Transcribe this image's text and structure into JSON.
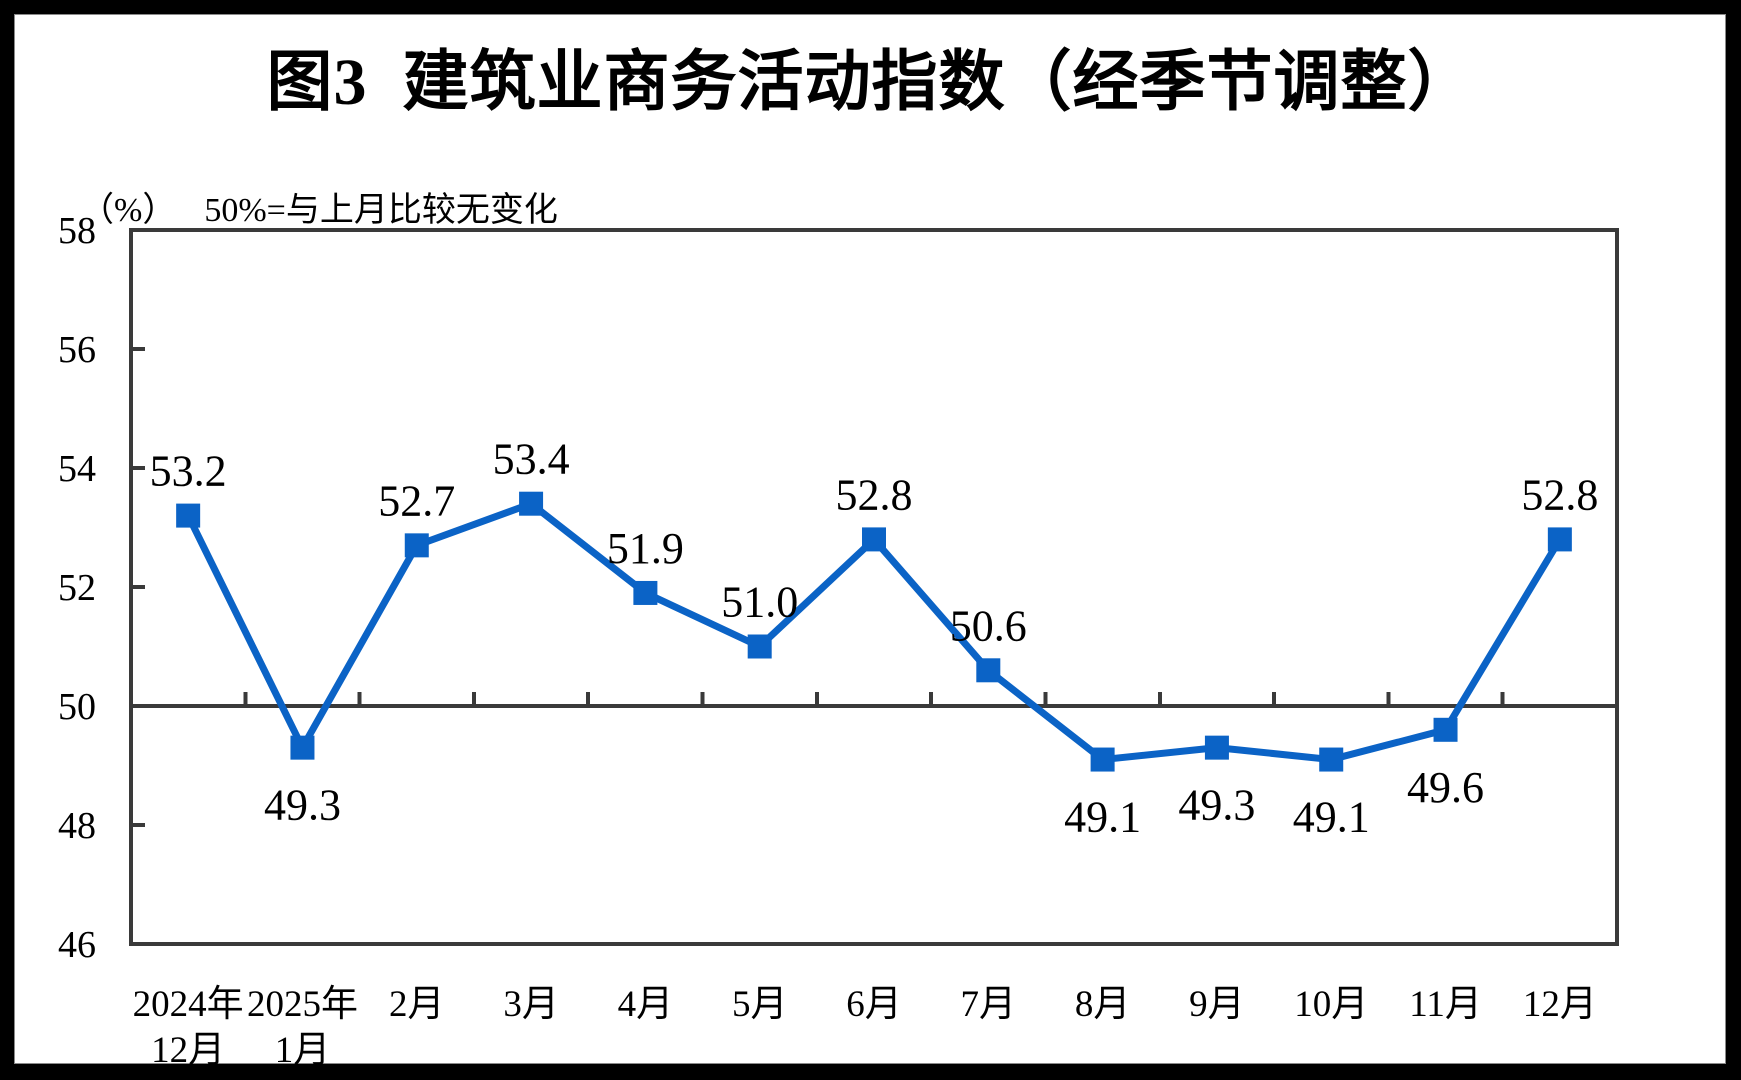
{
  "page": {
    "outer_background": "#000000",
    "canvas_background": "#FFFFFF"
  },
  "chart_data": {
    "type": "line",
    "title": "图3  建筑业商务活动指数（经季节调整）",
    "unit_label": "（%）",
    "subtitle": "50%=与上月比较无变化",
    "xlabel": "",
    "ylabel": "(%)",
    "legend": "none",
    "grid": false,
    "ylim": [
      46,
      58
    ],
    "yticks": [
      46,
      48,
      50,
      52,
      54,
      56,
      58
    ],
    "reference_line": 50,
    "axis_color": "#3a3a3a",
    "categories": [
      [
        "2024年",
        "12月"
      ],
      [
        "2025年",
        "1月"
      ],
      [
        "2月"
      ],
      [
        "3月"
      ],
      [
        "4月"
      ],
      [
        "5月"
      ],
      [
        "6月"
      ],
      [
        "7月"
      ],
      [
        "8月"
      ],
      [
        "9月"
      ],
      [
        "10月"
      ],
      [
        "11月"
      ],
      [
        "12月"
      ]
    ],
    "series": [
      {
        "name": "建筑业商务活动指数（经季节调整）",
        "color": "#0B63C6",
        "marker": "square",
        "values": [
          53.2,
          49.3,
          52.7,
          53.4,
          51.9,
          51.0,
          52.8,
          50.6,
          49.1,
          49.3,
          49.1,
          49.6,
          52.8
        ],
        "data_labels": [
          "53.2",
          "49.3",
          "52.7",
          "53.4",
          "51.9",
          "51.0",
          "52.8",
          "50.6",
          "49.1",
          "49.3",
          "49.1",
          "49.6",
          "52.8"
        ],
        "label_side": [
          "above",
          "below",
          "above",
          "above",
          "above",
          "above",
          "above",
          "above",
          "below",
          "below",
          "below",
          "below",
          "above"
        ]
      }
    ]
  }
}
